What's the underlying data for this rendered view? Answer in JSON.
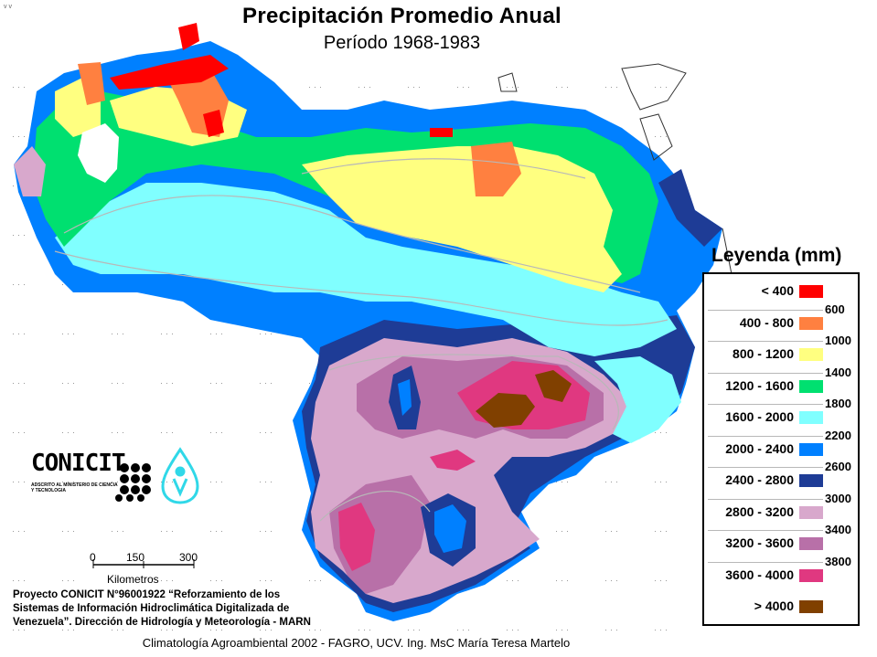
{
  "title": "Precipitación Promedio Anual",
  "subtitle": "Período 1968-1983",
  "corner_mark": "v v",
  "legend": {
    "title": "Leyenda (mm)",
    "classes": [
      {
        "label": "< 400",
        "color": "#ff0000"
      },
      {
        "label": "400 - 800",
        "color": "#ff8040"
      },
      {
        "label": "800 - 1200",
        "color": "#ffff80"
      },
      {
        "label": "1200 - 1600",
        "color": "#00e070"
      },
      {
        "label": "1600 - 2000",
        "color": "#80ffff"
      },
      {
        "label": "2000 - 2400",
        "color": "#0080ff"
      },
      {
        "label": "2400 - 2800",
        "color": "#1e3c96"
      },
      {
        "label": "2800 - 3200",
        "color": "#d8a8cc"
      },
      {
        "label": "3200 - 3600",
        "color": "#b870a8"
      },
      {
        "label": "3600 - 4000",
        "color": "#e03880"
      },
      {
        "label": "> 4000",
        "color": "#804000"
      }
    ],
    "isolines": [
      "600",
      "1000",
      "1400",
      "1800",
      "2200",
      "2600",
      "3000",
      "3400",
      "3800"
    ]
  },
  "scale_bar": {
    "ticks": [
      "0",
      "150",
      "300"
    ],
    "unit": "Kilometros"
  },
  "logos": {
    "conicit": "CONICIT",
    "conicit_sub": "ADSCRITO AL MINISTERIO DE CIENCIA Y TECNOLOGIA",
    "dots_icon": "dot-grid-logo-icon",
    "water_icon": "water-drop-person-icon"
  },
  "credits": [
    "Proyecto CONICIT N°96001922 “Reforzamiento de los",
    "Sistemas de Información Hidroclimática Digitalizada de",
    "Venezuela”. Dirección de Hidrología y Meteorología - MARN"
  ],
  "footer": "Climatología Agroambiental 2002 - FAGRO, UCV.  Ing. MsC María Teresa Martelo"
}
